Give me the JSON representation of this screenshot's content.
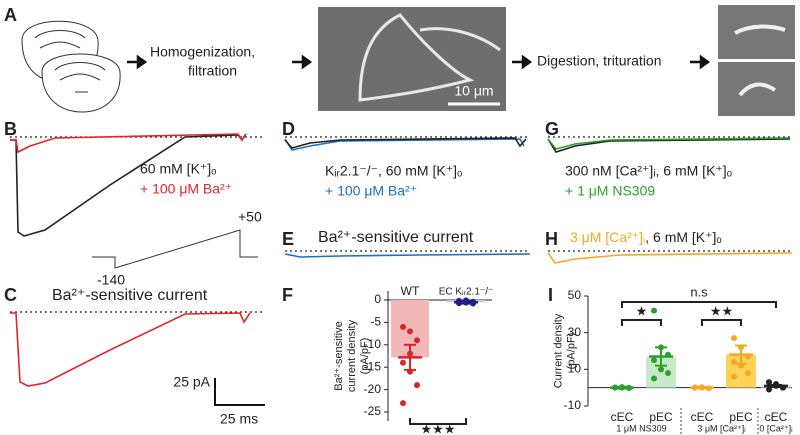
{
  "panel_labels": [
    "A",
    "B",
    "C",
    "D",
    "E",
    "F",
    "G",
    "H",
    "I"
  ],
  "panel_a": {
    "step1": [
      "Homogenization,",
      "filtration"
    ],
    "step2": "Digestion, trituration",
    "scale_bar": "10 μm"
  },
  "panel_b": {
    "legend": [
      "60 mM [K⁺]ₒ",
      "+ 100 μM Ba²⁺"
    ],
    "protocol": [
      "+50",
      "-140"
    ]
  },
  "panel_c": {
    "title": "Ba²⁺-sensitive current",
    "scale": [
      "25 pA",
      "25 ms"
    ]
  },
  "panel_d": {
    "legend": [
      "Kᵢᵣ2.1⁻/⁻, 60 mM [K⁺]ₒ",
      "+ 100 μM Ba²⁺"
    ]
  },
  "panel_e": {
    "title": "Ba²⁺-sensitive current"
  },
  "panel_g": {
    "legend": [
      "300 nM [Ca²⁺]ᵢ, 6 mM [K⁺]ₒ",
      "+ 1 μM NS309"
    ]
  },
  "panel_h": {
    "legend": [
      "3 μM [Ca²⁺]ᵢ",
      ", 6 mM [K⁺]ₒ"
    ]
  },
  "chart_data": [
    {
      "type": "bar",
      "ylabel": [
        "Ba²⁺-sensitive",
        "current density",
        "(pA/pF)"
      ],
      "categories": [
        "WT",
        "EC Kᵢᵣ2.1⁻/⁻"
      ],
      "values": [
        -12.8,
        -0.5
      ],
      "errors": [
        2.8,
        0.3
      ],
      "colors": [
        "#d62728",
        "#1f1f8f"
      ],
      "bar_colors": [
        "#f4b8b8",
        "#c8c8e8"
      ],
      "points": [
        [
          -6,
          -7,
          -9,
          -14,
          -16,
          -19,
          -23,
          -12
        ],
        [
          -0.2,
          -0.5,
          -0.8,
          -0.3,
          -0.6,
          -0.4,
          -0.7,
          -0.1
        ]
      ],
      "ylim": [
        -27,
        2
      ],
      "yticks": [
        0,
        -5,
        -10,
        -15,
        -20,
        -25
      ],
      "significance": [
        "★★★"
      ]
    },
    {
      "type": "bar",
      "ylabel": [
        "Current density",
        "(pA/pF)"
      ],
      "categories": [
        "cEC",
        "pEC",
        "cEC",
        "pEC",
        "cEC"
      ],
      "values": [
        0,
        17,
        0,
        18,
        1
      ],
      "errors": [
        0.5,
        5,
        0.3,
        5,
        0.5
      ],
      "colors": [
        "#2ca02c",
        "#2ca02c",
        "#f5a623",
        "#f5a623",
        "#222222"
      ],
      "bar_colors": [
        "#c9e8c9",
        "#c9e8c9",
        "#ffe7a8",
        "#ffd25a",
        "#dddddd"
      ],
      "points": [
        [
          0,
          0.3,
          -0.2,
          0.1,
          0,
          -0.1
        ],
        [
          42,
          22,
          18,
          15,
          10,
          8,
          5
        ],
        [
          0,
          0.2,
          -0.3,
          0.1,
          0
        ],
        [
          27,
          22,
          17,
          14,
          12,
          8,
          6
        ],
        [
          3,
          1,
          0,
          -1,
          2,
          0
        ]
      ],
      "groups": [
        "1 μM NS309",
        "3 μM [Ca²⁺]ᵢ",
        "0 [Ca²⁺]ᵢ"
      ],
      "ylim": [
        -10,
        50
      ],
      "yticks": [
        -10,
        10,
        30,
        50
      ],
      "significance": [
        "★",
        "★★",
        "n.s"
      ]
    }
  ]
}
